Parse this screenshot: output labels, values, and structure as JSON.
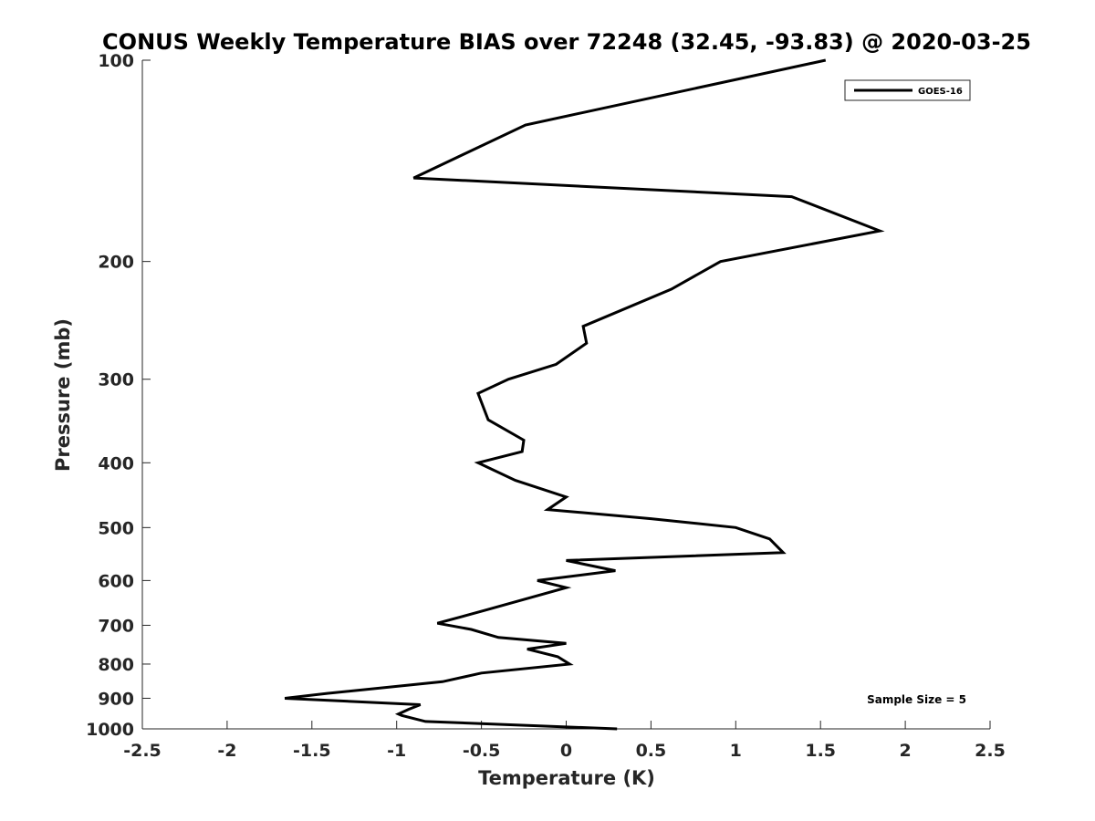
{
  "chart_data": {
    "type": "line",
    "title": "CONUS Weekly Temperature BIAS over 72248 (32.45, -93.83) @ 2020-03-25",
    "xlabel": "Temperature (K)",
    "ylabel": "Pressure (mb)",
    "xlim": [
      -2.5,
      2.5
    ],
    "ylim": [
      100,
      1000
    ],
    "y_scale": "log",
    "y_reversed": true,
    "x_ticks": [
      -2.5,
      -2,
      -1.5,
      -1,
      -0.5,
      0,
      0.5,
      1,
      1.5,
      2,
      2.5
    ],
    "x_tick_labels": [
      "-2.5",
      "-2",
      "-1.5",
      "-1",
      "-0.5",
      "0",
      "0.5",
      "1",
      "1.5",
      "2",
      "2.5"
    ],
    "y_ticks": [
      100,
      200,
      300,
      400,
      500,
      600,
      700,
      800,
      900,
      1000
    ],
    "y_tick_labels": [
      "100",
      "200",
      "300",
      "400",
      "500",
      "600",
      "700",
      "800",
      "900",
      "1000"
    ],
    "grid": false,
    "legend_position": "top-right",
    "annotations": [
      {
        "text": "Sample Size = 5",
        "position": "bottom-right"
      }
    ],
    "series": [
      {
        "name": "GOES-16",
        "color": "#000000",
        "points": [
          {
            "x": 1.53,
            "y": 100
          },
          {
            "x": -0.24,
            "y": 125
          },
          {
            "x": -0.9,
            "y": 150
          },
          {
            "x": 1.33,
            "y": 160
          },
          {
            "x": 1.85,
            "y": 180
          },
          {
            "x": 0.91,
            "y": 200
          },
          {
            "x": 0.62,
            "y": 220
          },
          {
            "x": 0.1,
            "y": 250
          },
          {
            "x": 0.12,
            "y": 265
          },
          {
            "x": -0.06,
            "y": 285
          },
          {
            "x": -0.34,
            "y": 300
          },
          {
            "x": -0.52,
            "y": 315
          },
          {
            "x": -0.46,
            "y": 345
          },
          {
            "x": -0.25,
            "y": 370
          },
          {
            "x": -0.26,
            "y": 385
          },
          {
            "x": -0.52,
            "y": 400
          },
          {
            "x": -0.3,
            "y": 425
          },
          {
            "x": 0.0,
            "y": 450
          },
          {
            "x": -0.11,
            "y": 470
          },
          {
            "x": 0.5,
            "y": 485
          },
          {
            "x": 1.0,
            "y": 500
          },
          {
            "x": 1.2,
            "y": 520
          },
          {
            "x": 1.28,
            "y": 545
          },
          {
            "x": 0.0,
            "y": 560
          },
          {
            "x": 0.29,
            "y": 580
          },
          {
            "x": -0.17,
            "y": 600
          },
          {
            "x": 0.0,
            "y": 615
          },
          {
            "x": -0.48,
            "y": 665
          },
          {
            "x": -0.76,
            "y": 695
          },
          {
            "x": -0.56,
            "y": 710
          },
          {
            "x": -0.4,
            "y": 730
          },
          {
            "x": 0.0,
            "y": 745
          },
          {
            "x": -0.23,
            "y": 760
          },
          {
            "x": -0.05,
            "y": 780
          },
          {
            "x": 0.02,
            "y": 800
          },
          {
            "x": -0.5,
            "y": 825
          },
          {
            "x": -0.73,
            "y": 850
          },
          {
            "x": -1.41,
            "y": 885
          },
          {
            "x": -1.66,
            "y": 900
          },
          {
            "x": -0.86,
            "y": 920
          },
          {
            "x": -0.93,
            "y": 935
          },
          {
            "x": -0.99,
            "y": 950
          },
          {
            "x": -0.97,
            "y": 955
          },
          {
            "x": -0.83,
            "y": 975
          },
          {
            "x": 0.3,
            "y": 1000
          }
        ]
      }
    ]
  }
}
